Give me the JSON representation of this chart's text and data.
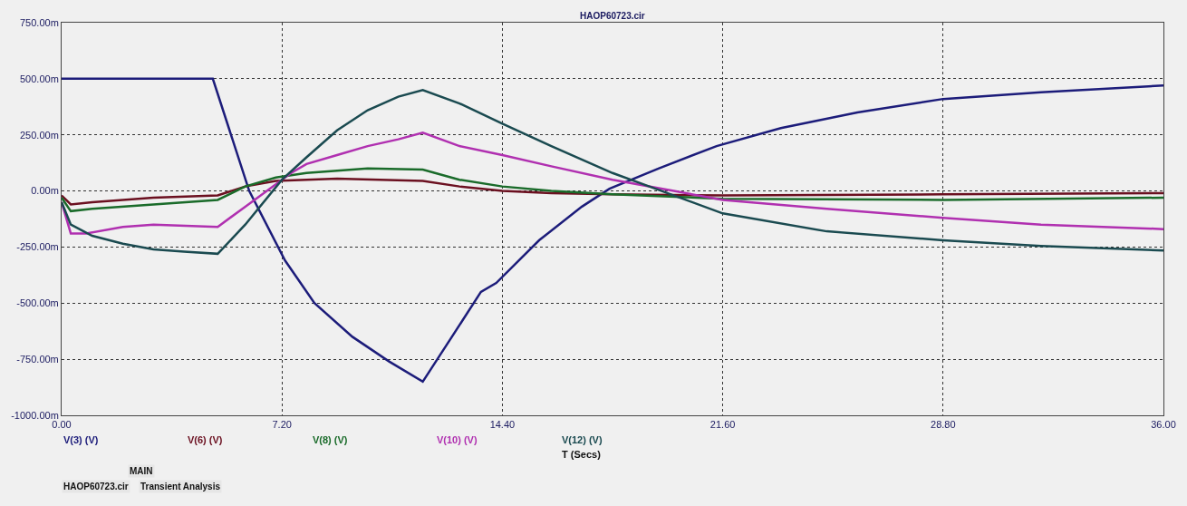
{
  "chart_data": {
    "type": "line",
    "title": "HAOP60723.cir",
    "xlabel": "T (Secs)",
    "xlim": [
      0,
      36
    ],
    "xticks": [
      {
        "value": 0,
        "label": "0.00"
      },
      {
        "value": 7.2,
        "label": "7.20"
      },
      {
        "value": 14.4,
        "label": "14.40"
      },
      {
        "value": 21.6,
        "label": "21.60"
      },
      {
        "value": 28.8,
        "label": "28.80"
      },
      {
        "value": 36,
        "label": "36.00"
      }
    ],
    "ylim": [
      -1000,
      750
    ],
    "yticks": [
      {
        "value": -1000,
        "label": "-1000.00m"
      },
      {
        "value": -750,
        "label": "-750.00m"
      },
      {
        "value": -500,
        "label": "-500.00m"
      },
      {
        "value": -250,
        "label": "-250.00m"
      },
      {
        "value": 0,
        "label": "0.00m"
      },
      {
        "value": 250,
        "label": "250.00m"
      },
      {
        "value": 500,
        "label": "500.00m"
      },
      {
        "value": 750,
        "label": "750.00m"
      }
    ],
    "grid": true,
    "legend": false,
    "line_style": "solid",
    "annotations": [
      "MAIN",
      "HAOP60723.cir",
      "Transient Analysis"
    ],
    "series": [
      {
        "name": "V(3) (V)",
        "color": "#1c1c7a",
        "x": [
          0,
          4.94,
          6.13,
          7.3,
          8.26,
          9.5,
          10.7,
          11.8,
          12.8,
          13.7,
          14.2,
          15.6,
          17,
          17.9,
          19.5,
          21.4,
          23.5,
          26,
          28.8,
          32,
          36
        ],
        "values": [
          500,
          500,
          0,
          -310,
          -500,
          -650,
          -760,
          -850,
          -640,
          -450,
          -410,
          -220,
          -70,
          10,
          100,
          200,
          280,
          350,
          410,
          440,
          470
        ]
      },
      {
        "name": "V(6) (V)",
        "color": "#6b1020",
        "x": [
          0,
          0.3,
          1,
          3,
          5.1,
          6,
          7,
          8,
          9,
          11.8,
          13,
          14.4,
          16,
          18,
          21.6,
          28.8,
          36
        ],
        "values": [
          -20,
          -60,
          -50,
          -30,
          -20,
          20,
          45,
          50,
          55,
          45,
          20,
          0,
          -10,
          -15,
          -20,
          -15,
          -10
        ]
      },
      {
        "name": "V(8) (V)",
        "color": "#1a6b2a",
        "x": [
          0,
          0.3,
          1,
          3,
          5.1,
          6,
          7,
          8,
          9,
          10,
          11.8,
          13,
          14.4,
          16,
          18,
          21.6,
          28.8,
          36
        ],
        "values": [
          -30,
          -90,
          -80,
          -60,
          -40,
          20,
          60,
          80,
          90,
          100,
          95,
          50,
          20,
          0,
          -15,
          -35,
          -40,
          -30
        ]
      },
      {
        "name": "V(10) (V)",
        "color": "#b030b0",
        "x": [
          0,
          0.3,
          0.8,
          2,
          3,
          5.1,
          6,
          7,
          7.5,
          8,
          9,
          10,
          11,
          11.8,
          13,
          14.4,
          16,
          18,
          20,
          21.6,
          25,
          28.8,
          32,
          36
        ],
        "values": [
          -50,
          -190,
          -190,
          -160,
          -150,
          -160,
          -70,
          30,
          80,
          120,
          160,
          200,
          230,
          260,
          200,
          160,
          110,
          50,
          0,
          -40,
          -80,
          -120,
          -150,
          -170
        ]
      },
      {
        "name": "V(12) (V)",
        "color": "#1a4a50",
        "x": [
          0,
          0.3,
          1,
          2,
          3,
          4,
          5.1,
          6,
          7.2,
          8,
          9,
          10,
          11,
          11.8,
          13,
          14.4,
          16,
          18,
          19,
          21.6,
          25,
          28.8,
          32,
          36
        ],
        "values": [
          -50,
          -150,
          -200,
          -235,
          -260,
          -270,
          -280,
          -150,
          50,
          150,
          270,
          360,
          420,
          450,
          390,
          300,
          200,
          80,
          30,
          -100,
          -180,
          -220,
          -245,
          -265
        ]
      }
    ]
  }
}
